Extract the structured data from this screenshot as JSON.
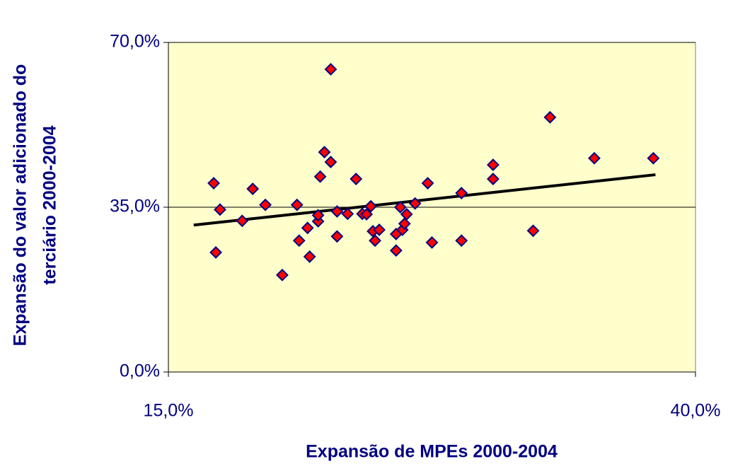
{
  "chart_data": {
    "type": "scatter",
    "xlabel": "Expansão de MPEs 2000-2004",
    "ylabel": [
      "Expansão do valor adicionado do",
      "terciário 2000-2004"
    ],
    "x": [
      17.15,
      17.25,
      17.45,
      18.5,
      19.0,
      19.6,
      20.4,
      21.1,
      21.2,
      21.6,
      21.7,
      22.1,
      22.1,
      22.2,
      22.4,
      22.7,
      22.7,
      23.0,
      23.0,
      23.5,
      23.9,
      24.2,
      24.4,
      24.6,
      24.7,
      24.8,
      25.0,
      25.8,
      25.8,
      26.0,
      26.1,
      26.2,
      26.3,
      26.7,
      27.3,
      27.5,
      28.9,
      28.9,
      30.4,
      30.4,
      32.3,
      33.1,
      35.2,
      38.0
    ],
    "y": [
      40.1,
      25.4,
      34.5,
      32.1,
      38.9,
      35.5,
      20.6,
      35.5,
      27.9,
      30.6,
      24.5,
      32.0,
      33.3,
      41.5,
      46.7,
      44.6,
      64.3,
      34.1,
      28.8,
      33.6,
      41.0,
      33.6,
      33.5,
      35.2,
      29.9,
      27.9,
      30.2,
      25.8,
      29.3,
      35.0,
      30.2,
      31.5,
      33.5,
      35.8,
      40.1,
      27.5,
      27.9,
      38.0,
      41.0,
      44.0,
      30.0,
      54.1,
      45.4,
      45.4
    ],
    "color": "#ff0000",
    "edgecolor": "#000080",
    "trendline": {
      "x": [
        16.2,
        38.1
      ],
      "y": [
        31.2,
        41.9
      ],
      "color": "#000000"
    },
    "xlim": [
      15,
      40
    ],
    "ylim": [
      0,
      70
    ],
    "xticks": [
      {
        "value": 15,
        "label": "15,0%"
      },
      {
        "value": 40,
        "label": "40,0%"
      }
    ],
    "yticks": [
      {
        "value": 0,
        "label": "0,0%"
      },
      {
        "value": 35,
        "label": "35,0%"
      },
      {
        "value": 70,
        "label": "70,0%"
      }
    ],
    "grid": true,
    "background": "#ffffcc"
  }
}
